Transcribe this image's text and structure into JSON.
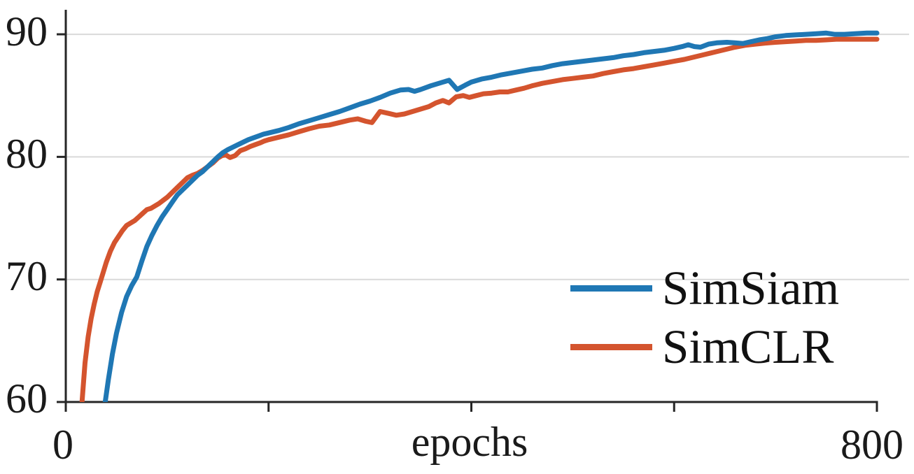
{
  "figure": {
    "background": "#ffffff",
    "axis_color": "#262626",
    "grid_color": "#d9d9d9",
    "text_color": "#1a1a1a"
  },
  "chart_data": {
    "type": "line",
    "title": "",
    "xlabel": "epochs",
    "ylabel": "",
    "xlim": [
      0,
      800
    ],
    "ylim": [
      60,
      92
    ],
    "x_ticks": [
      0,
      200,
      400,
      600,
      800
    ],
    "x_tick_labels": [
      "0",
      "800"
    ],
    "y_ticks": [
      60,
      70,
      80,
      90
    ],
    "y_tick_labels": [
      "60",
      "70",
      "80",
      "90"
    ],
    "gridlines": {
      "horizontal_at": [
        70,
        80,
        90
      ],
      "vertical": false
    },
    "legend": {
      "position": "lower right",
      "entries": [
        {
          "label": "SimSiam",
          "color": "#1f77b4"
        },
        {
          "label": "SimCLR",
          "color": "#d4542e"
        }
      ]
    },
    "series": [
      {
        "name": "SimCLR",
        "color": "#d4542e",
        "points": [
          [
            13,
            56.0
          ],
          [
            16,
            60.0
          ],
          [
            19,
            63.2
          ],
          [
            22,
            65.3
          ],
          [
            25,
            66.8
          ],
          [
            28,
            68.0
          ],
          [
            31,
            69.0
          ],
          [
            34,
            69.8
          ],
          [
            37,
            70.6
          ],
          [
            40,
            71.4
          ],
          [
            44,
            72.3
          ],
          [
            48,
            73.0
          ],
          [
            52,
            73.5
          ],
          [
            56,
            74.0
          ],
          [
            60,
            74.4
          ],
          [
            64,
            74.6
          ],
          [
            68,
            74.8
          ],
          [
            72,
            75.1
          ],
          [
            76,
            75.4
          ],
          [
            80,
            75.7
          ],
          [
            84,
            75.8
          ],
          [
            88,
            76.0
          ],
          [
            92,
            76.2
          ],
          [
            96,
            76.45
          ],
          [
            100,
            76.7
          ],
          [
            105,
            77.1
          ],
          [
            110,
            77.5
          ],
          [
            115,
            77.9
          ],
          [
            120,
            78.3
          ],
          [
            125,
            78.5
          ],
          [
            130,
            78.65
          ],
          [
            135,
            78.9
          ],
          [
            140,
            79.2
          ],
          [
            145,
            79.5
          ],
          [
            150,
            79.9
          ],
          [
            154,
            80.1
          ],
          [
            158,
            80.15
          ],
          [
            162,
            79.95
          ],
          [
            167,
            80.1
          ],
          [
            172,
            80.5
          ],
          [
            177,
            80.65
          ],
          [
            182,
            80.85
          ],
          [
            187,
            81.0
          ],
          [
            192,
            81.15
          ],
          [
            196,
            81.3
          ],
          [
            200,
            81.4
          ],
          [
            210,
            81.6
          ],
          [
            220,
            81.8
          ],
          [
            230,
            82.05
          ],
          [
            240,
            82.3
          ],
          [
            250,
            82.5
          ],
          [
            260,
            82.6
          ],
          [
            270,
            82.8
          ],
          [
            280,
            83.0
          ],
          [
            288,
            83.1
          ],
          [
            296,
            82.9
          ],
          [
            302,
            82.8
          ],
          [
            310,
            83.7
          ],
          [
            318,
            83.55
          ],
          [
            326,
            83.4
          ],
          [
            334,
            83.5
          ],
          [
            342,
            83.7
          ],
          [
            350,
            83.9
          ],
          [
            358,
            84.1
          ],
          [
            365,
            84.4
          ],
          [
            372,
            84.6
          ],
          [
            378,
            84.4
          ],
          [
            385,
            84.9
          ],
          [
            392,
            85.0
          ],
          [
            398,
            84.85
          ],
          [
            405,
            85.0
          ],
          [
            412,
            85.15
          ],
          [
            420,
            85.2
          ],
          [
            428,
            85.3
          ],
          [
            436,
            85.3
          ],
          [
            444,
            85.45
          ],
          [
            452,
            85.6
          ],
          [
            460,
            85.8
          ],
          [
            470,
            86.0
          ],
          [
            480,
            86.15
          ],
          [
            490,
            86.3
          ],
          [
            500,
            86.4
          ],
          [
            510,
            86.5
          ],
          [
            520,
            86.6
          ],
          [
            530,
            86.8
          ],
          [
            540,
            86.95
          ],
          [
            550,
            87.1
          ],
          [
            560,
            87.2
          ],
          [
            570,
            87.35
          ],
          [
            580,
            87.5
          ],
          [
            590,
            87.65
          ],
          [
            600,
            87.8
          ],
          [
            610,
            87.95
          ],
          [
            620,
            88.15
          ],
          [
            630,
            88.35
          ],
          [
            640,
            88.55
          ],
          [
            650,
            88.75
          ],
          [
            660,
            88.95
          ],
          [
            670,
            89.1
          ],
          [
            680,
            89.2
          ],
          [
            690,
            89.28
          ],
          [
            700,
            89.35
          ],
          [
            710,
            89.4
          ],
          [
            720,
            89.45
          ],
          [
            730,
            89.5
          ],
          [
            740,
            89.5
          ],
          [
            750,
            89.55
          ],
          [
            760,
            89.6
          ],
          [
            770,
            89.6
          ],
          [
            780,
            89.6
          ],
          [
            790,
            89.6
          ],
          [
            800,
            89.6
          ]
        ]
      },
      {
        "name": "SimSiam",
        "color": "#1f77b4",
        "points": [
          [
            34,
            56.0
          ],
          [
            38,
            59.5
          ],
          [
            42,
            61.8
          ],
          [
            46,
            63.9
          ],
          [
            50,
            65.6
          ],
          [
            55,
            67.3
          ],
          [
            60,
            68.6
          ],
          [
            65,
            69.5
          ],
          [
            70,
            70.2
          ],
          [
            75,
            71.5
          ],
          [
            80,
            72.7
          ],
          [
            85,
            73.6
          ],
          [
            90,
            74.4
          ],
          [
            95,
            75.1
          ],
          [
            100,
            75.7
          ],
          [
            105,
            76.3
          ],
          [
            110,
            76.9
          ],
          [
            115,
            77.3
          ],
          [
            120,
            77.7
          ],
          [
            125,
            78.1
          ],
          [
            130,
            78.5
          ],
          [
            135,
            78.8
          ],
          [
            140,
            79.2
          ],
          [
            145,
            79.6
          ],
          [
            150,
            80.0
          ],
          [
            155,
            80.35
          ],
          [
            160,
            80.6
          ],
          [
            165,
            80.8
          ],
          [
            170,
            81.0
          ],
          [
            175,
            81.2
          ],
          [
            180,
            81.4
          ],
          [
            185,
            81.55
          ],
          [
            190,
            81.7
          ],
          [
            195,
            81.85
          ],
          [
            200,
            81.95
          ],
          [
            210,
            82.15
          ],
          [
            220,
            82.4
          ],
          [
            230,
            82.7
          ],
          [
            240,
            82.95
          ],
          [
            250,
            83.2
          ],
          [
            260,
            83.45
          ],
          [
            270,
            83.7
          ],
          [
            280,
            84.0
          ],
          [
            290,
            84.3
          ],
          [
            300,
            84.55
          ],
          [
            310,
            84.85
          ],
          [
            320,
            85.2
          ],
          [
            330,
            85.45
          ],
          [
            338,
            85.5
          ],
          [
            344,
            85.35
          ],
          [
            350,
            85.5
          ],
          [
            360,
            85.8
          ],
          [
            370,
            86.05
          ],
          [
            378,
            86.25
          ],
          [
            386,
            85.5
          ],
          [
            394,
            85.85
          ],
          [
            400,
            86.1
          ],
          [
            410,
            86.35
          ],
          [
            420,
            86.5
          ],
          [
            430,
            86.7
          ],
          [
            440,
            86.85
          ],
          [
            450,
            87.0
          ],
          [
            460,
            87.15
          ],
          [
            470,
            87.25
          ],
          [
            480,
            87.45
          ],
          [
            490,
            87.6
          ],
          [
            500,
            87.7
          ],
          [
            510,
            87.8
          ],
          [
            520,
            87.9
          ],
          [
            530,
            88.0
          ],
          [
            540,
            88.1
          ],
          [
            550,
            88.25
          ],
          [
            560,
            88.35
          ],
          [
            570,
            88.5
          ],
          [
            580,
            88.6
          ],
          [
            590,
            88.7
          ],
          [
            600,
            88.85
          ],
          [
            608,
            89.0
          ],
          [
            614,
            89.15
          ],
          [
            620,
            89.0
          ],
          [
            626,
            88.95
          ],
          [
            634,
            89.2
          ],
          [
            642,
            89.3
          ],
          [
            652,
            89.35
          ],
          [
            660,
            89.3
          ],
          [
            668,
            89.25
          ],
          [
            676,
            89.4
          ],
          [
            684,
            89.55
          ],
          [
            692,
            89.65
          ],
          [
            700,
            89.8
          ],
          [
            710,
            89.9
          ],
          [
            720,
            89.95
          ],
          [
            730,
            90.0
          ],
          [
            740,
            90.05
          ],
          [
            750,
            90.1
          ],
          [
            758,
            90.0
          ],
          [
            768,
            90.0
          ],
          [
            778,
            90.05
          ],
          [
            790,
            90.1
          ],
          [
            800,
            90.1
          ]
        ]
      }
    ]
  }
}
